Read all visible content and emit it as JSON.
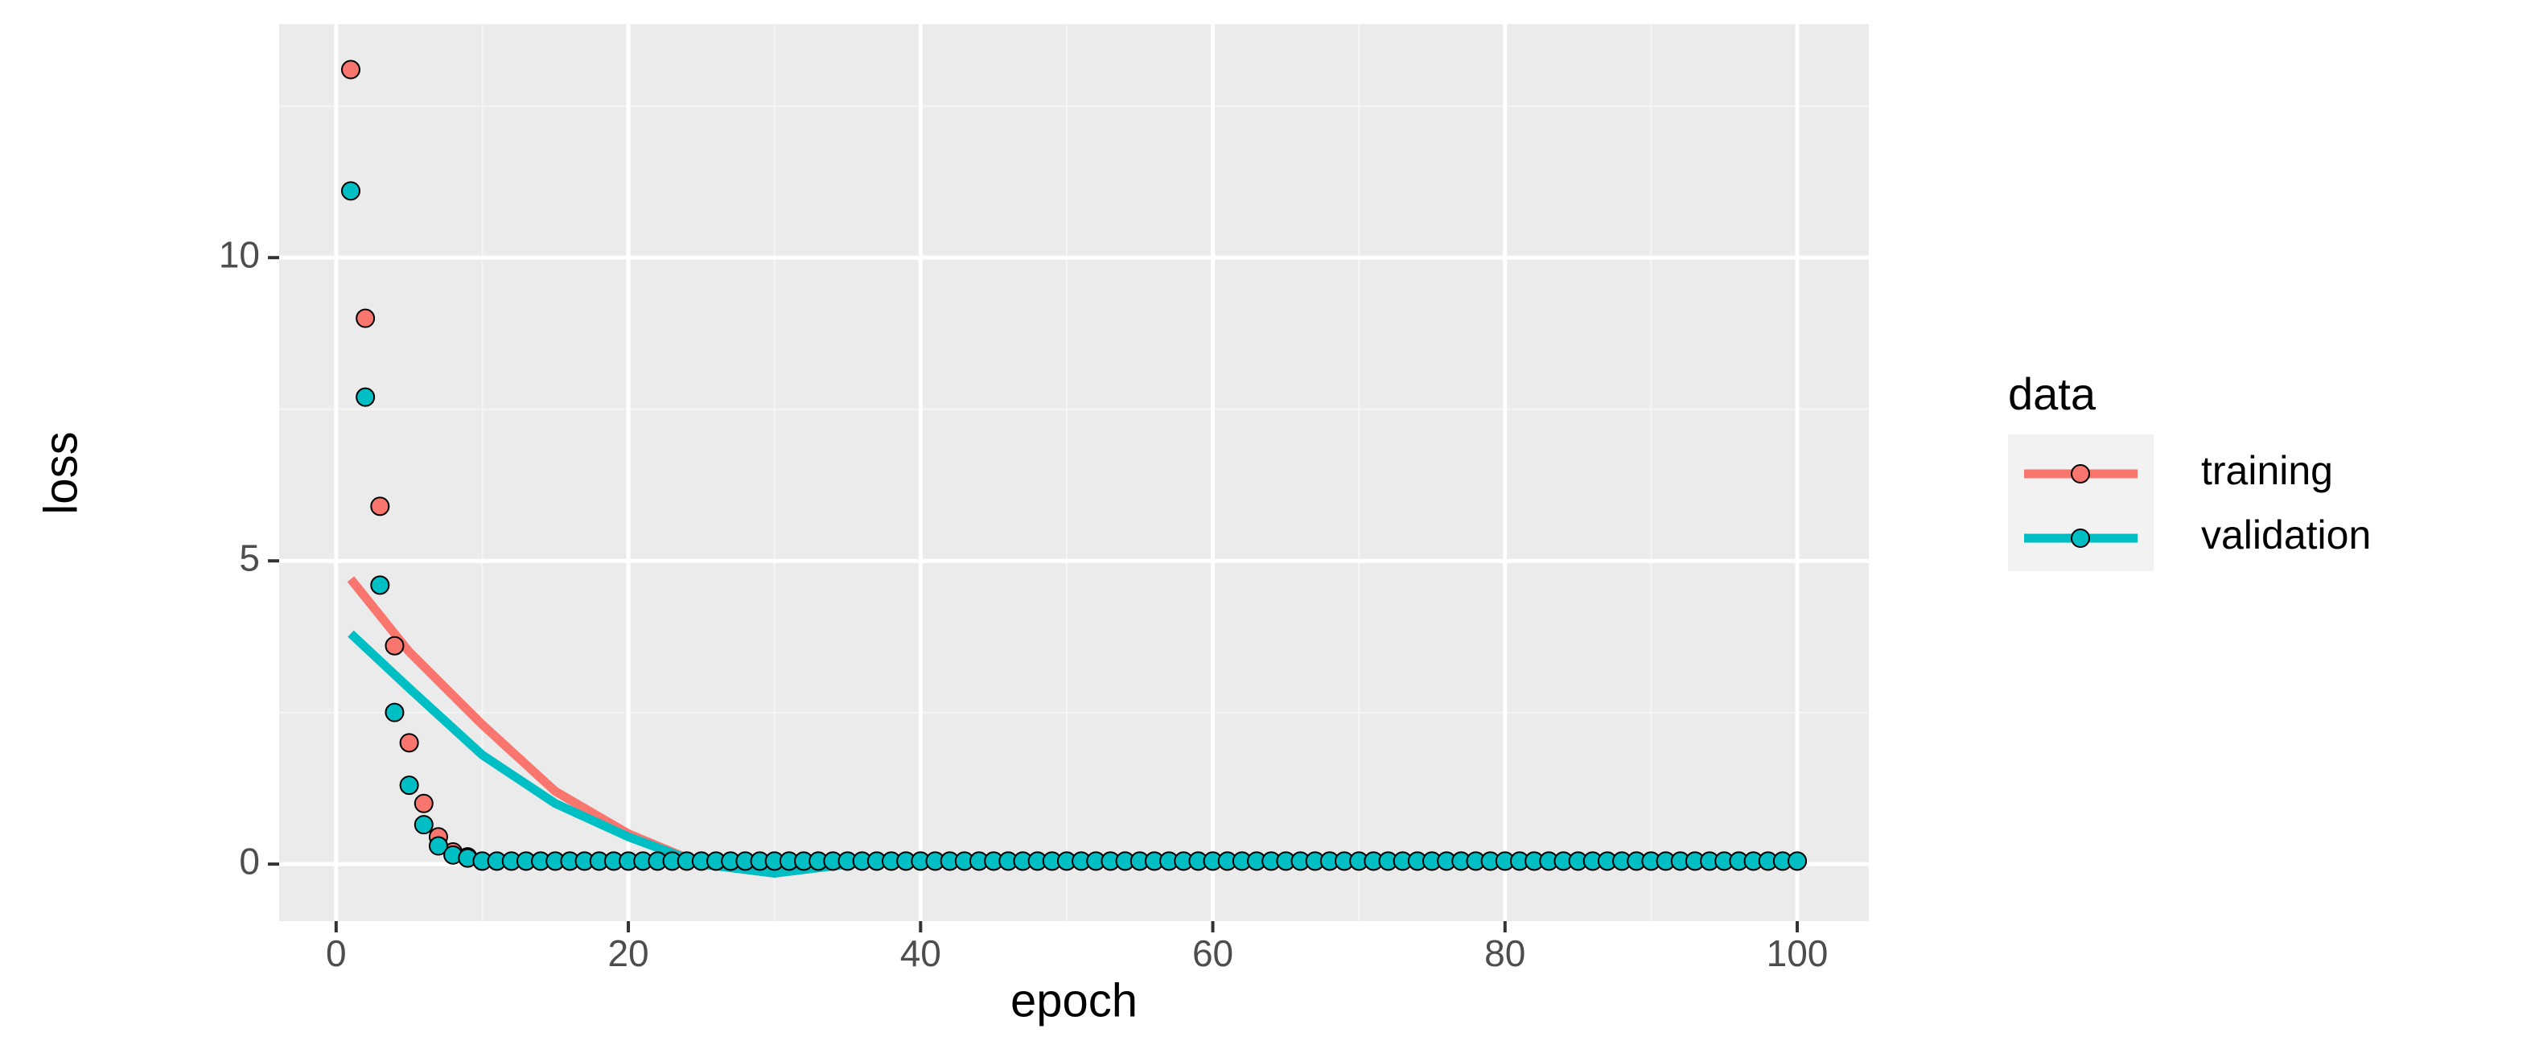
{
  "chart_data": {
    "type": "scatter",
    "x_label": "epoch",
    "y_label": "loss",
    "legend_title": "data",
    "x": [
      1,
      2,
      3,
      4,
      5,
      6,
      7,
      8,
      9,
      10,
      11,
      12,
      13,
      14,
      15,
      16,
      17,
      18,
      19,
      20,
      21,
      22,
      23,
      24,
      25,
      26,
      27,
      28,
      29,
      30,
      31,
      32,
      33,
      34,
      35,
      36,
      37,
      38,
      39,
      40,
      41,
      42,
      43,
      44,
      45,
      46,
      47,
      48,
      49,
      50,
      51,
      52,
      53,
      54,
      55,
      56,
      57,
      58,
      59,
      60,
      61,
      62,
      63,
      64,
      65,
      66,
      67,
      68,
      69,
      70,
      71,
      72,
      73,
      74,
      75,
      76,
      77,
      78,
      79,
      80,
      81,
      82,
      83,
      84,
      85,
      86,
      87,
      88,
      89,
      90,
      91,
      92,
      93,
      94,
      95,
      96,
      97,
      98,
      99,
      100
    ],
    "trend_x": [
      1,
      5,
      10,
      15,
      20,
      25,
      30,
      35,
      40,
      60,
      80,
      100
    ],
    "series": [
      {
        "name": "training",
        "color": "#F8766D",
        "values": [
          13.1,
          9.0,
          5.9,
          3.6,
          2.0,
          1.0,
          0.45,
          0.2,
          0.12,
          0.05,
          0.05,
          0.05,
          0.05,
          0.05,
          0.05,
          0.05,
          0.05,
          0.05,
          0.05,
          0.05,
          0.05,
          0.05,
          0.05,
          0.05,
          0.05,
          0.05,
          0.05,
          0.05,
          0.05,
          0.05,
          0.05,
          0.05,
          0.05,
          0.05,
          0.05,
          0.05,
          0.05,
          0.05,
          0.05,
          0.05,
          0.05,
          0.05,
          0.05,
          0.05,
          0.05,
          0.05,
          0.05,
          0.05,
          0.05,
          0.05,
          0.05,
          0.05,
          0.05,
          0.05,
          0.05,
          0.05,
          0.05,
          0.05,
          0.05,
          0.05,
          0.05,
          0.05,
          0.05,
          0.05,
          0.05,
          0.05,
          0.05,
          0.05,
          0.05,
          0.05,
          0.05,
          0.05,
          0.05,
          0.05,
          0.05,
          0.05,
          0.05,
          0.05,
          0.05,
          0.05,
          0.05,
          0.05,
          0.05,
          0.05,
          0.05,
          0.05,
          0.05,
          0.05,
          0.05,
          0.05,
          0.05,
          0.05,
          0.05,
          0.05,
          0.05,
          0.05,
          0.05,
          0.05,
          0.05,
          0.05
        ],
        "trend": [
          4.7,
          3.5,
          2.3,
          1.2,
          0.5,
          0.0,
          -0.15,
          0.0,
          0.05,
          0.05,
          0.05,
          0.05
        ]
      },
      {
        "name": "validation",
        "color": "#00BFC4",
        "values": [
          11.1,
          7.7,
          4.6,
          2.5,
          1.3,
          0.65,
          0.3,
          0.15,
          0.1,
          0.05,
          0.05,
          0.05,
          0.05,
          0.05,
          0.05,
          0.05,
          0.05,
          0.05,
          0.05,
          0.05,
          0.05,
          0.05,
          0.05,
          0.05,
          0.05,
          0.05,
          0.05,
          0.05,
          0.05,
          0.05,
          0.05,
          0.05,
          0.05,
          0.05,
          0.05,
          0.05,
          0.05,
          0.05,
          0.05,
          0.05,
          0.05,
          0.05,
          0.05,
          0.05,
          0.05,
          0.05,
          0.05,
          0.05,
          0.05,
          0.05,
          0.05,
          0.05,
          0.05,
          0.05,
          0.05,
          0.05,
          0.05,
          0.05,
          0.05,
          0.05,
          0.05,
          0.05,
          0.05,
          0.05,
          0.05,
          0.05,
          0.05,
          0.05,
          0.05,
          0.05,
          0.05,
          0.05,
          0.05,
          0.05,
          0.05,
          0.05,
          0.05,
          0.05,
          0.05,
          0.05,
          0.05,
          0.05,
          0.05,
          0.05,
          0.05,
          0.05,
          0.05,
          0.05,
          0.05,
          0.05,
          0.05,
          0.05,
          0.05,
          0.05,
          0.05,
          0.05,
          0.05,
          0.05,
          0.05,
          0.05
        ],
        "trend": [
          3.8,
          2.9,
          1.8,
          1.0,
          0.45,
          0.0,
          -0.15,
          0.0,
          0.05,
          0.05,
          0.05,
          0.05
        ]
      }
    ],
    "xlim": [
      -3.9,
      104.9
    ],
    "xticks": [
      0,
      20,
      40,
      60,
      80,
      100
    ],
    "ylim": [
      -0.94,
      13.85
    ],
    "yticks": [
      0,
      5,
      10
    ],
    "grid": true,
    "legend": "right"
  }
}
